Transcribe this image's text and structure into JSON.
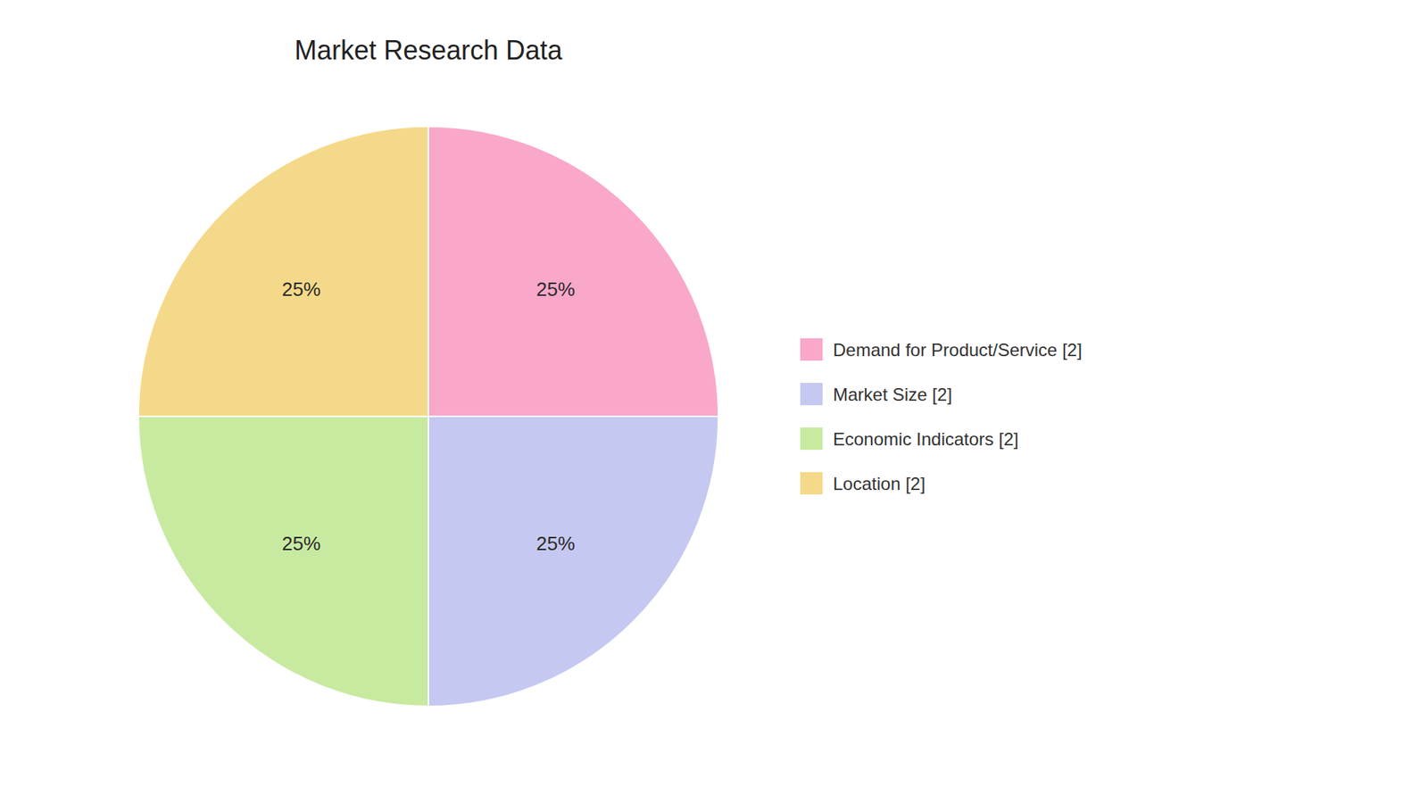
{
  "chart_data": {
    "type": "pie",
    "title": "Market Research Data",
    "categories": [
      "Demand for Product/Service [2]",
      "Market Size [2]",
      "Economic Indicators [2]",
      "Location [2]"
    ],
    "values": [
      25,
      25,
      25,
      25
    ],
    "value_labels": [
      "25%",
      "25%",
      "25%",
      "25%"
    ],
    "colors": [
      "#F9A8C9",
      "#C5C8F0",
      "#C8EAA0",
      "#F5D98A"
    ],
    "data_labels": true,
    "legend": "right"
  }
}
